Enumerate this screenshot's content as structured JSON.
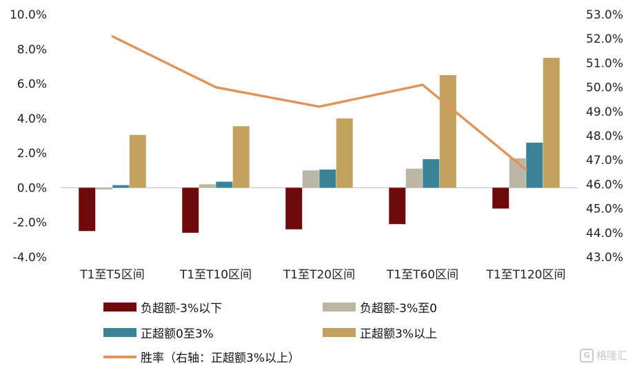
{
  "chart_data": {
    "type": "bar",
    "categories": [
      "T1至T5区间",
      "T1至T10区间",
      "T1至T20区间",
      "T1至T60区间",
      "T1至T120区间"
    ],
    "series": [
      {
        "name": "负超额-3%以下",
        "color": "#6e0a0a",
        "values": [
          -2.5,
          -2.6,
          -2.4,
          -2.1,
          -1.2
        ]
      },
      {
        "name": "负超额-3%至0",
        "color": "#bcb6a4",
        "values": [
          -0.1,
          0.2,
          1.0,
          1.1,
          1.7
        ]
      },
      {
        "name": "正超额0至3%",
        "color": "#3a8296",
        "values": [
          0.15,
          0.35,
          1.05,
          1.65,
          2.6
        ]
      },
      {
        "name": "正超额3%以上",
        "color": "#c3a25f",
        "values": [
          3.05,
          3.55,
          4.0,
          6.5,
          7.5
        ]
      }
    ],
    "line": {
      "name": "胜率（右轴：正超额3%以上）",
      "color": "#e0945a",
      "values": [
        52.1,
        50.0,
        49.2,
        50.1,
        46.6
      ]
    },
    "ylim": [
      -4.0,
      10.0
    ],
    "yticks": [
      "10.0%",
      "8.0%",
      "6.0%",
      "4.0%",
      "2.0%",
      "0.0%",
      "-2.0%",
      "-4.0%"
    ],
    "y2lim": [
      43.0,
      53.0
    ],
    "y2ticks": [
      "53.0%",
      "52.0%",
      "51.0%",
      "50.0%",
      "49.0%",
      "48.0%",
      "47.0%",
      "46.0%",
      "45.0%",
      "44.0%",
      "43.0%"
    ],
    "legend_position": "bottom",
    "grid": false
  },
  "watermark": {
    "icon": "G",
    "text": "格隆汇"
  }
}
